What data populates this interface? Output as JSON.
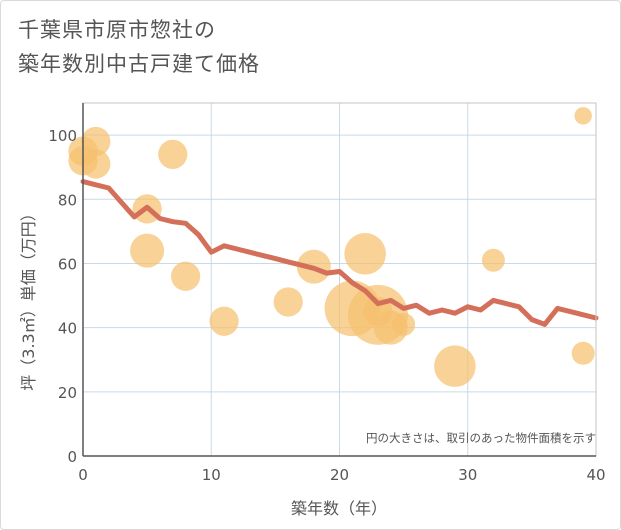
{
  "title_line1": "千葉県市原市惣社の",
  "title_line2": "築年数別中古戸建て価格",
  "chart_data": {
    "type": "scatter",
    "xlabel": "築年数（年）",
    "ylabel": "坪（3.3㎡）単価（万円）",
    "xlim": [
      0,
      40
    ],
    "ylim": [
      0,
      110
    ],
    "x_ticks": [
      0,
      10,
      20,
      30,
      40
    ],
    "y_ticks": [
      0,
      20,
      40,
      60,
      80,
      100
    ],
    "grid": true,
    "note": "円の大きさは、取引のあった物件面積を示す",
    "colors": {
      "bubble": "#f5c06f",
      "line": "#d4705a",
      "grid": "#c9d9e6",
      "axis": "#555555"
    },
    "bubbles": [
      {
        "x": 0,
        "y": 95,
        "s": 2
      },
      {
        "x": 0,
        "y": 92,
        "s": 2
      },
      {
        "x": 1,
        "y": 98,
        "s": 2
      },
      {
        "x": 1,
        "y": 91,
        "s": 2
      },
      {
        "x": 5,
        "y": 77,
        "s": 2
      },
      {
        "x": 5,
        "y": 64,
        "s": 3
      },
      {
        "x": 7,
        "y": 94,
        "s": 2
      },
      {
        "x": 8,
        "y": 56,
        "s": 2
      },
      {
        "x": 11,
        "y": 42,
        "s": 2
      },
      {
        "x": 16,
        "y": 48,
        "s": 2
      },
      {
        "x": 18,
        "y": 59,
        "s": 3
      },
      {
        "x": 21,
        "y": 46,
        "s": 10
      },
      {
        "x": 22,
        "y": 63,
        "s": 5
      },
      {
        "x": 23,
        "y": 44,
        "s": 12
      },
      {
        "x": 23,
        "y": 45,
        "s": 2
      },
      {
        "x": 24,
        "y": 40,
        "s": 3
      },
      {
        "x": 25,
        "y": 41,
        "s": 1
      },
      {
        "x": 29,
        "y": 28,
        "s": 5
      },
      {
        "x": 32,
        "y": 61,
        "s": 1
      },
      {
        "x": 39,
        "y": 106,
        "s": 0.4
      },
      {
        "x": 39,
        "y": 32,
        "s": 1
      }
    ],
    "trend": {
      "x": [
        0,
        1,
        2,
        3,
        4,
        5,
        6,
        7,
        8,
        9,
        10,
        11,
        12,
        13,
        14,
        15,
        16,
        17,
        18,
        19,
        20,
        21,
        22,
        23,
        24,
        25,
        26,
        27,
        28,
        29,
        30,
        31,
        32,
        33,
        34,
        35,
        36,
        37,
        38,
        39,
        40
      ],
      "y": [
        85.5,
        84.5,
        83.5,
        79,
        74.5,
        77.5,
        74,
        73,
        72.5,
        69,
        63.5,
        65.5,
        64.5,
        63.5,
        62.5,
        61.5,
        60.5,
        59.5,
        58.5,
        57,
        57.5,
        54,
        51.5,
        47.5,
        48.5,
        46,
        47,
        44.5,
        45.5,
        44.5,
        46.5,
        45.5,
        48.5,
        47.5,
        46.5,
        42.5,
        41,
        46,
        45,
        44,
        43
      ]
    }
  }
}
